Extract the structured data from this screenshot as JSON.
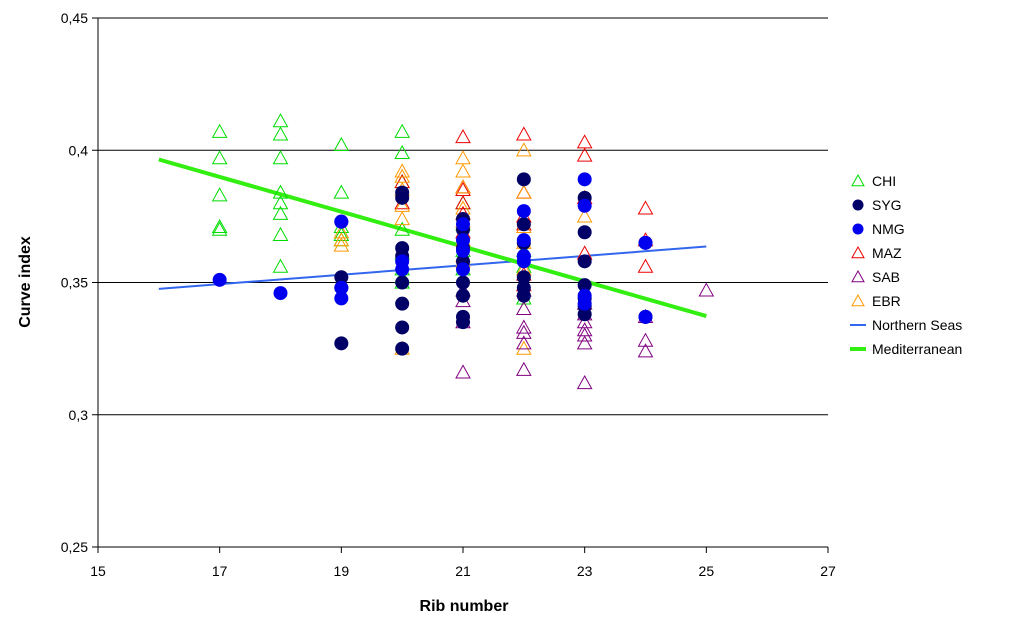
{
  "chart_data": {
    "type": "scatter",
    "title": "",
    "xlabel": "Rib number",
    "ylabel": "Curve index",
    "xlim": [
      15,
      27
    ],
    "ylim": [
      0.25,
      0.45
    ],
    "x_ticks": [
      {
        "value": 15,
        "label": "15"
      },
      {
        "value": 17,
        "label": "17"
      },
      {
        "value": 19,
        "label": "19"
      },
      {
        "value": 21,
        "label": "21"
      },
      {
        "value": 23,
        "label": "23"
      },
      {
        "value": 25,
        "label": "25"
      },
      {
        "value": 27,
        "label": "27"
      }
    ],
    "y_ticks": [
      {
        "value": 0.25,
        "label": "0,25"
      },
      {
        "value": 0.3,
        "label": "0,3"
      },
      {
        "value": 0.35,
        "label": "0,35"
      },
      {
        "value": 0.4,
        "label": "0,4"
      },
      {
        "value": 0.45,
        "label": "0,45"
      }
    ],
    "grid": "horizontal",
    "legend_position": "right",
    "series": [
      {
        "name": "CHI",
        "marker": "triangle-open",
        "color": "#00dd00",
        "points": [
          [
            17,
            0.407
          ],
          [
            17,
            0.397
          ],
          [
            17,
            0.383
          ],
          [
            17,
            0.371
          ],
          [
            17,
            0.37
          ],
          [
            18,
            0.411
          ],
          [
            18,
            0.406
          ],
          [
            18,
            0.397
          ],
          [
            18,
            0.384
          ],
          [
            18,
            0.38
          ],
          [
            18,
            0.376
          ],
          [
            18,
            0.368
          ],
          [
            18,
            0.356
          ],
          [
            19,
            0.402
          ],
          [
            19,
            0.384
          ],
          [
            19,
            0.371
          ],
          [
            19,
            0.368
          ],
          [
            19,
            0.366
          ],
          [
            20,
            0.407
          ],
          [
            20,
            0.399
          ],
          [
            20,
            0.388
          ],
          [
            20,
            0.37
          ],
          [
            20,
            0.361
          ],
          [
            20,
            0.355
          ],
          [
            20,
            0.352
          ],
          [
            20,
            0.35
          ],
          [
            21,
            0.38
          ],
          [
            21,
            0.372
          ],
          [
            21,
            0.362
          ],
          [
            21,
            0.355
          ],
          [
            22,
            0.362
          ],
          [
            22,
            0.356
          ],
          [
            22,
            0.344
          ]
        ]
      },
      {
        "name": "SYG",
        "marker": "circle-filled",
        "color": "#000066",
        "points": [
          [
            19,
            0.373
          ],
          [
            19,
            0.352
          ],
          [
            19,
            0.348
          ],
          [
            19,
            0.327
          ],
          [
            20,
            0.384
          ],
          [
            20,
            0.382
          ],
          [
            20,
            0.363
          ],
          [
            20,
            0.36
          ],
          [
            20,
            0.35
          ],
          [
            20,
            0.342
          ],
          [
            20,
            0.333
          ],
          [
            20,
            0.325
          ],
          [
            21,
            0.374
          ],
          [
            21,
            0.37
          ],
          [
            21,
            0.363
          ],
          [
            21,
            0.358
          ],
          [
            21,
            0.35
          ],
          [
            21,
            0.345
          ],
          [
            21,
            0.337
          ],
          [
            21,
            0.335
          ],
          [
            22,
            0.389
          ],
          [
            22,
            0.372
          ],
          [
            22,
            0.365
          ],
          [
            22,
            0.36
          ],
          [
            22,
            0.352
          ],
          [
            22,
            0.348
          ],
          [
            22,
            0.345
          ],
          [
            23,
            0.382
          ],
          [
            23,
            0.369
          ],
          [
            23,
            0.358
          ],
          [
            23,
            0.349
          ],
          [
            23,
            0.344
          ],
          [
            23,
            0.341
          ],
          [
            23,
            0.338
          ],
          [
            24,
            0.365
          ],
          [
            24,
            0.337
          ]
        ]
      },
      {
        "name": "NMG",
        "marker": "circle-filled",
        "color": "#0000ee",
        "points": [
          [
            17,
            0.351
          ],
          [
            18,
            0.346
          ],
          [
            19,
            0.373
          ],
          [
            19,
            0.348
          ],
          [
            19,
            0.344
          ],
          [
            20,
            0.358
          ],
          [
            20,
            0.355
          ],
          [
            21,
            0.372
          ],
          [
            21,
            0.366
          ],
          [
            21,
            0.362
          ],
          [
            21,
            0.355
          ],
          [
            22,
            0.377
          ],
          [
            22,
            0.366
          ],
          [
            22,
            0.36
          ],
          [
            22,
            0.358
          ],
          [
            23,
            0.389
          ],
          [
            23,
            0.379
          ],
          [
            23,
            0.345
          ],
          [
            23,
            0.342
          ],
          [
            24,
            0.365
          ],
          [
            24,
            0.337
          ]
        ]
      },
      {
        "name": "MAZ",
        "marker": "triangle-open",
        "color": "#ee0000",
        "points": [
          [
            20,
            0.388
          ],
          [
            20,
            0.38
          ],
          [
            21,
            0.405
          ],
          [
            21,
            0.386
          ],
          [
            21,
            0.385
          ],
          [
            21,
            0.38
          ],
          [
            21,
            0.376
          ],
          [
            21,
            0.369
          ],
          [
            22,
            0.406
          ],
          [
            22,
            0.384
          ],
          [
            22,
            0.375
          ],
          [
            22,
            0.372
          ],
          [
            22,
            0.353
          ],
          [
            22,
            0.349
          ],
          [
            23,
            0.403
          ],
          [
            23,
            0.398
          ],
          [
            23,
            0.382
          ],
          [
            23,
            0.361
          ],
          [
            24,
            0.378
          ],
          [
            24,
            0.366
          ],
          [
            24,
            0.356
          ]
        ]
      },
      {
        "name": "SAB",
        "marker": "triangle-open",
        "color": "#800080",
        "points": [
          [
            21,
            0.347
          ],
          [
            21,
            0.343
          ],
          [
            21,
            0.335
          ],
          [
            21,
            0.316
          ],
          [
            22,
            0.347
          ],
          [
            22,
            0.34
          ],
          [
            22,
            0.333
          ],
          [
            22,
            0.331
          ],
          [
            22,
            0.327
          ],
          [
            22,
            0.317
          ],
          [
            23,
            0.342
          ],
          [
            23,
            0.338
          ],
          [
            23,
            0.335
          ],
          [
            23,
            0.332
          ],
          [
            23,
            0.33
          ],
          [
            23,
            0.327
          ],
          [
            23,
            0.312
          ],
          [
            24,
            0.337
          ],
          [
            24,
            0.328
          ],
          [
            24,
            0.324
          ],
          [
            25,
            0.347
          ]
        ]
      },
      {
        "name": "EBR",
        "marker": "triangle-open",
        "color": "#ff9900",
        "points": [
          [
            19,
            0.369
          ],
          [
            19,
            0.366
          ],
          [
            19,
            0.364
          ],
          [
            20,
            0.392
          ],
          [
            20,
            0.39
          ],
          [
            20,
            0.385
          ],
          [
            20,
            0.379
          ],
          [
            20,
            0.374
          ],
          [
            20,
            0.325
          ],
          [
            21,
            0.397
          ],
          [
            21,
            0.392
          ],
          [
            21,
            0.386
          ],
          [
            21,
            0.378
          ],
          [
            21,
            0.373
          ],
          [
            21,
            0.366
          ],
          [
            21,
            0.36
          ],
          [
            21,
            0.358
          ],
          [
            22,
            0.4
          ],
          [
            22,
            0.384
          ],
          [
            22,
            0.371
          ],
          [
            22,
            0.365
          ],
          [
            22,
            0.355
          ],
          [
            22,
            0.325
          ],
          [
            23,
            0.375
          ]
        ]
      }
    ],
    "lines": [
      {
        "name": "Northern Seas",
        "color": "#3366ee",
        "x": [
          16,
          25
        ],
        "y": [
          0.3476,
          0.3636
        ]
      },
      {
        "name": "Mediterranean",
        "color": "#33ee11",
        "x": [
          16,
          25
        ],
        "y": [
          0.3965,
          0.3373
        ]
      }
    ]
  }
}
